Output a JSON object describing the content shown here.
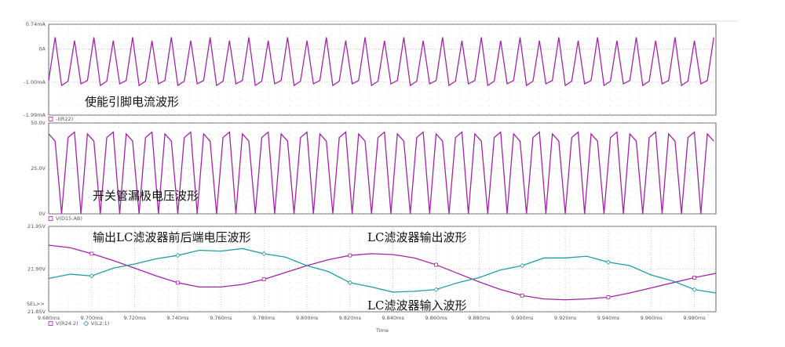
{
  "chart_data": [
    {
      "type": "line",
      "x": [
        9.68,
        9.683,
        9.686,
        9.689,
        9.692,
        9.695,
        9.698,
        9.701,
        9.704,
        9.707,
        9.71,
        9.713,
        9.716,
        9.719,
        9.722,
        9.725,
        9.728,
        9.731,
        9.734,
        9.737,
        9.74,
        9.743,
        9.746,
        9.749,
        9.752,
        9.755,
        9.758,
        9.761,
        9.764,
        9.767,
        9.77,
        9.773,
        9.776,
        9.779,
        9.782,
        9.785,
        9.788,
        9.791,
        9.794,
        9.797,
        9.8,
        9.803,
        9.806,
        9.809,
        9.812,
        9.815,
        9.818,
        9.821,
        9.824,
        9.827,
        9.83,
        9.833,
        9.836,
        9.839,
        9.842,
        9.845,
        9.848,
        9.851,
        9.854,
        9.857,
        9.86,
        9.863,
        9.866,
        9.869,
        9.872,
        9.875,
        9.878,
        9.881,
        9.884,
        9.887,
        9.89,
        9.893,
        9.896,
        9.899,
        9.902,
        9.905,
        9.908,
        9.911,
        9.914,
        9.917,
        9.92,
        9.923,
        9.926,
        9.929,
        9.932,
        9.935,
        9.938,
        9.941,
        9.944,
        9.947,
        9.95,
        9.953,
        9.956,
        9.959,
        9.962,
        9.965,
        9.968,
        9.971,
        9.974,
        9.977,
        9.98,
        9.983,
        9.986,
        9.989
      ],
      "xlim": [
        9.68,
        9.99
      ],
      "ylim": [
        -1.99,
        0.74
      ],
      "yticks": [
        {
          "value": -1.99,
          "label": "-1.99mA"
        },
        {
          "value": -1.0,
          "label": "-1.00mA"
        },
        {
          "value": 0,
          "label": "0A"
        },
        {
          "value": 0.74,
          "label": "0.74mA"
        }
      ],
      "series": [
        {
          "name": "-I(R22)",
          "color": "#a424a8",
          "values": [
            -0.95,
            0.35,
            -1.1,
            -0.97,
            0.25,
            -1.05,
            -0.95,
            0.35,
            -1.1,
            -0.97,
            0.25,
            -1.05,
            -0.95,
            0.35,
            -1.1,
            -0.97,
            0.25,
            -1.05,
            -0.95,
            0.35,
            -1.1,
            -0.97,
            0.25,
            -1.05,
            -0.95,
            0.35,
            -1.1,
            -0.97,
            0.25,
            -1.05,
            -0.95,
            0.35,
            -1.1,
            -0.97,
            0.25,
            -1.05,
            -0.95,
            0.35,
            -1.1,
            -0.97,
            0.25,
            -1.05,
            -0.95,
            0.35,
            -1.1,
            -0.97,
            0.25,
            -1.05,
            -0.95,
            0.35,
            -1.1,
            -0.97,
            0.25,
            -1.05,
            -0.95,
            0.35,
            -1.1,
            -0.97,
            0.25,
            -1.05,
            -0.95,
            0.35,
            -1.1,
            -0.97,
            0.25,
            -1.05,
            -0.95,
            0.35,
            -1.1,
            -0.97,
            0.25,
            -1.05,
            -0.95,
            0.35,
            -1.1,
            -0.97,
            0.25,
            -1.05,
            -0.95,
            0.35,
            -1.1,
            -0.97,
            0.25,
            -1.05,
            -0.95,
            0.35,
            -1.1,
            -0.97,
            0.25,
            -1.05,
            -0.95,
            0.35,
            -1.1,
            -0.97,
            0.25,
            -1.05,
            -0.95,
            0.35,
            -1.1,
            -0.97,
            0.25,
            -1.05,
            -0.95,
            0.35
          ]
        }
      ],
      "annotations": [
        "使能引脚电流波形"
      ],
      "grid": true
    },
    {
      "type": "line",
      "x": [
        9.68,
        9.683,
        9.686,
        9.689,
        9.692,
        9.695,
        9.698,
        9.701,
        9.704,
        9.707,
        9.71,
        9.713,
        9.716,
        9.719,
        9.722,
        9.725,
        9.728,
        9.731,
        9.734,
        9.737,
        9.74,
        9.743,
        9.746,
        9.749,
        9.752,
        9.755,
        9.758,
        9.761,
        9.764,
        9.767,
        9.77,
        9.773,
        9.776,
        9.779,
        9.782,
        9.785,
        9.788,
        9.791,
        9.794,
        9.797,
        9.8,
        9.803,
        9.806,
        9.809,
        9.812,
        9.815,
        9.818,
        9.821,
        9.824,
        9.827,
        9.83,
        9.833,
        9.836,
        9.839,
        9.842,
        9.845,
        9.848,
        9.851,
        9.854,
        9.857,
        9.86,
        9.863,
        9.866,
        9.869,
        9.872,
        9.875,
        9.878,
        9.881,
        9.884,
        9.887,
        9.89,
        9.893,
        9.896,
        9.899,
        9.902,
        9.905,
        9.908,
        9.911,
        9.914,
        9.917,
        9.92,
        9.923,
        9.926,
        9.929,
        9.932,
        9.935,
        9.938,
        9.941,
        9.944,
        9.947,
        9.95,
        9.953,
        9.956,
        9.959,
        9.962,
        9.965,
        9.968,
        9.971,
        9.974,
        9.977,
        9.98,
        9.983,
        9.986,
        9.989
      ],
      "xlim": [
        9.68,
        9.99
      ],
      "ylim": [
        0,
        50
      ],
      "yticks": [
        0,
        {
          "value": 25,
          "label": "25.0V"
        },
        {
          "value": 50,
          "label": "50.0V"
        }
      ],
      "ytick_zero_label": "0V",
      "series": [
        {
          "name": "V(D15:AB)",
          "color": "#a424a8",
          "values": [
            44,
            40,
            0,
            42,
            45,
            0,
            44,
            40,
            0,
            42,
            45,
            0,
            44,
            40,
            0,
            42,
            45,
            0,
            44,
            40,
            0,
            42,
            45,
            0,
            44,
            40,
            0,
            42,
            45,
            0,
            44,
            40,
            0,
            42,
            45,
            0,
            44,
            40,
            0,
            42,
            45,
            0,
            44,
            40,
            0,
            42,
            45,
            0,
            44,
            40,
            0,
            42,
            45,
            0,
            44,
            40,
            0,
            42,
            45,
            0,
            44,
            40,
            0,
            42,
            45,
            0,
            44,
            40,
            0,
            42,
            45,
            0,
            44,
            40,
            0,
            42,
            45,
            0,
            44,
            40,
            0,
            42,
            45,
            0,
            44,
            40,
            0,
            42,
            45,
            0,
            44,
            40,
            0,
            42,
            45,
            0,
            44,
            40,
            0,
            42,
            45,
            0,
            44,
            40
          ]
        }
      ],
      "annotations": [
        "开关管漏极电压波形"
      ],
      "grid": true
    },
    {
      "type": "line",
      "x": [
        9.68,
        9.69,
        9.7,
        9.71,
        9.72,
        9.73,
        9.74,
        9.75,
        9.76,
        9.77,
        9.78,
        9.79,
        9.8,
        9.81,
        9.82,
        9.83,
        9.84,
        9.85,
        9.86,
        9.87,
        9.88,
        9.89,
        9.9,
        9.91,
        9.92,
        9.93,
        9.94,
        9.95,
        9.96,
        9.97,
        9.98,
        9.99
      ],
      "xlim": [
        9.68,
        9.99
      ],
      "xticks": [
        {
          "value": 9.68,
          "label": "9.680ms"
        },
        {
          "value": 9.7,
          "label": "9.700ms"
        },
        {
          "value": 9.72,
          "label": "9.720ms"
        },
        {
          "value": 9.74,
          "label": "9.740ms"
        },
        {
          "value": 9.76,
          "label": "9.760ms"
        },
        {
          "value": 9.78,
          "label": "9.780ms"
        },
        {
          "value": 9.8,
          "label": "9.800ms"
        },
        {
          "value": 9.82,
          "label": "9.820ms"
        },
        {
          "value": 9.84,
          "label": "9.840ms"
        },
        {
          "value": 9.86,
          "label": "9.860ms"
        },
        {
          "value": 9.88,
          "label": "9.880ms"
        },
        {
          "value": 9.9,
          "label": "9.900ms"
        },
        {
          "value": 9.92,
          "label": "9.920ms"
        },
        {
          "value": 9.94,
          "label": "9.940ms"
        },
        {
          "value": 9.96,
          "label": "9.960ms"
        },
        {
          "value": 9.98,
          "label": "9.980ms"
        }
      ],
      "xlabel": "Time",
      "ylim": [
        21.85,
        21.95
      ],
      "yticks": [
        {
          "value": 21.85,
          "label": "21.85V"
        },
        {
          "value": 21.9,
          "label": "21.90V"
        },
        {
          "value": 21.95,
          "label": "21.95V"
        }
      ],
      "selector_label": "SEL>>",
      "series": [
        {
          "name": "V(R24:2)",
          "color": "#a424a8",
          "marker": "square",
          "values": [
            21.928,
            21.925,
            21.918,
            21.91,
            21.901,
            21.892,
            21.884,
            21.879,
            21.879,
            21.882,
            21.888,
            21.896,
            21.904,
            21.911,
            21.916,
            21.918,
            21.917,
            21.913,
            21.905,
            21.895,
            21.885,
            21.876,
            21.869,
            21.865,
            21.864,
            21.865,
            21.867,
            21.872,
            21.878,
            21.884,
            21.89,
            21.895
          ]
        },
        {
          "name": "V(L2:1)",
          "color": "#1f9ea6",
          "marker": "diamond",
          "values": [
            21.889,
            21.894,
            21.892,
            21.901,
            21.906,
            21.912,
            21.916,
            21.922,
            21.921,
            21.924,
            21.918,
            21.914,
            21.904,
            21.897,
            21.884,
            21.879,
            21.873,
            21.874,
            21.876,
            21.884,
            21.89,
            21.899,
            21.904,
            21.913,
            21.913,
            21.915,
            21.908,
            21.904,
            21.893,
            21.886,
            21.876,
            21.872
          ]
        }
      ],
      "annotations": [
        "输出LC滤波器前后端电压波形",
        "LC滤波器输出波形",
        "LC滤波器输入波形"
      ],
      "grid": true
    }
  ]
}
